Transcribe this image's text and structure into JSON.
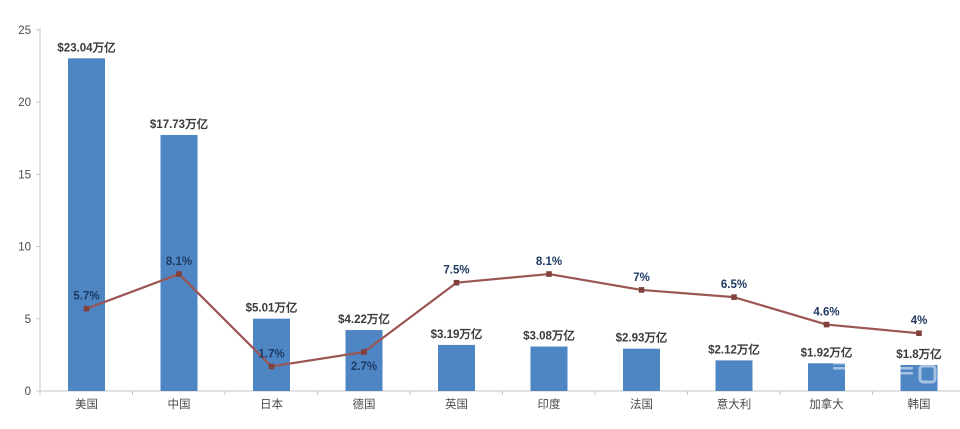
{
  "chart_data": {
    "type": "bar",
    "title": "",
    "xlabel": "",
    "ylabel": "",
    "categories": [
      "美国",
      "中国",
      "日本",
      "德国",
      "英国",
      "印度",
      "法国",
      "意大利",
      "加拿大",
      "韩国"
    ],
    "series": [
      {
        "name": "gdp-bars",
        "type": "bar",
        "values": [
          23.04,
          17.73,
          5.01,
          4.22,
          3.19,
          3.08,
          2.93,
          2.12,
          1.92,
          1.8
        ],
        "labels": [
          "$23.04万亿",
          "$17.73万亿",
          "$5.01万亿",
          "$4.22万亿",
          "$3.19万亿",
          "$3.08万亿",
          "$2.93万亿",
          "$2.12万亿",
          "$1.92万亿",
          "$1.8万亿"
        ]
      },
      {
        "name": "growth-line",
        "type": "line",
        "values": [
          5.7,
          8.1,
          1.7,
          2.7,
          7.5,
          8.1,
          7,
          6.5,
          4.6,
          4
        ],
        "labels": [
          "5.7%",
          "8.1%",
          "1.7%",
          "2.7%",
          "7.5%",
          "8.1%",
          "7%",
          "6.5%",
          "4.6%",
          "4%"
        ],
        "label_positions": [
          "above",
          "above",
          "above",
          "below",
          "above",
          "above",
          "above",
          "above",
          "above",
          "above"
        ]
      }
    ],
    "ylim": [
      0,
      25
    ],
    "yticks": [
      0,
      5,
      10,
      15,
      20,
      25
    ],
    "grid": false,
    "legend": "none",
    "colors": {
      "bar": "#4e86c4",
      "line": "#9b5653",
      "marker": "#82403c",
      "bar_label": "#3b3b3b",
      "pct_label": "#1f3a63",
      "axis": "#c6c6c6",
      "tick_label": "#4a4a4a",
      "watermark": "#ffffff"
    }
  }
}
